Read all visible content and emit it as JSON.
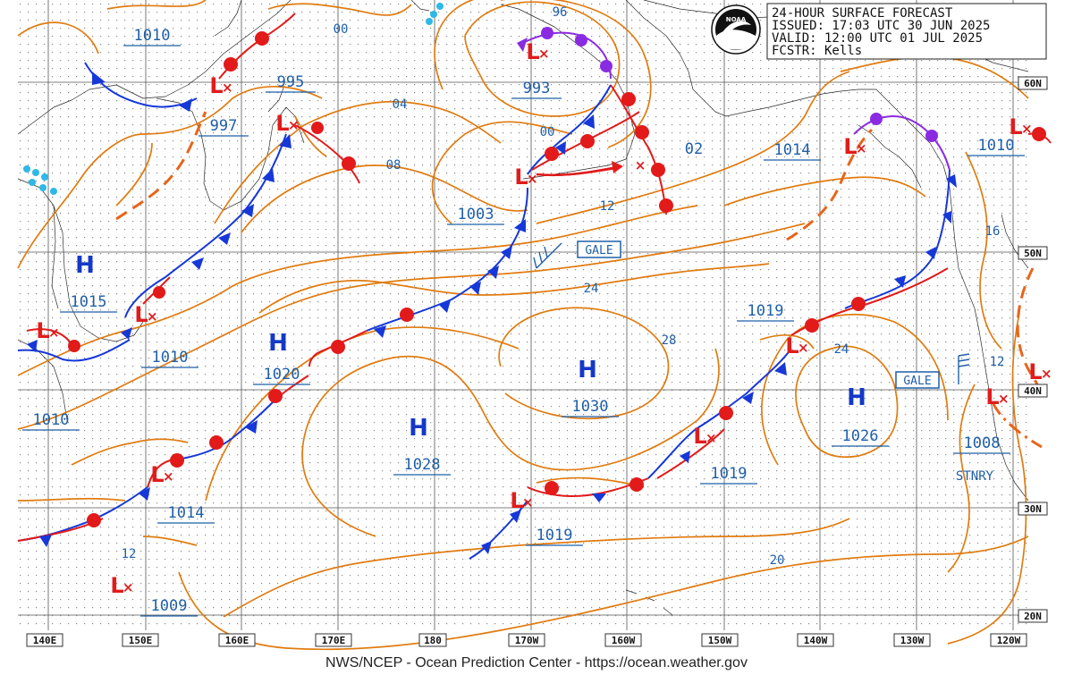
{
  "header": {
    "title": "24-HOUR SURFACE FORECAST",
    "issued": "ISSUED: 17:03 UTC 30 JUN 2025",
    "valid": "VALID:  12:00 UTC 01 JUL 2025",
    "forecaster": "FCSTR:  Kells"
  },
  "logo_text": "NOAA",
  "footer": "NWS/NCEP - Ocean Prediction Center - https://ocean.weather.gov",
  "lon_labels": [
    "140E",
    "150E",
    "160E",
    "170E",
    "180",
    "170W",
    "160W",
    "150W",
    "140W",
    "130W",
    "120W"
  ],
  "lat_labels": [
    "60N",
    "50N",
    "40N",
    "30N",
    "20N"
  ],
  "highs": [
    {
      "symbol": "H",
      "pressure": "1015"
    },
    {
      "symbol": "H",
      "pressure": "1020"
    },
    {
      "symbol": "H",
      "pressure": "1028"
    },
    {
      "symbol": "H",
      "pressure": "1030"
    },
    {
      "symbol": "H",
      "pressure": "1026"
    }
  ],
  "lows": [
    {
      "symbol": "L",
      "pressure": "997"
    },
    {
      "symbol": "L",
      "pressure": "995"
    },
    {
      "symbol": "L",
      "pressure": "993"
    },
    {
      "symbol": "L",
      "pressure": "1003"
    },
    {
      "symbol": "L",
      "pressure": "1014"
    },
    {
      "symbol": "L",
      "pressure": "1010"
    },
    {
      "symbol": "L",
      "pressure": "1010"
    },
    {
      "symbol": "L",
      "pressure": "1019"
    },
    {
      "symbol": "L",
      "pressure": "1019"
    },
    {
      "symbol": "L",
      "pressure": "1019"
    },
    {
      "symbol": "L",
      "pressure": "1014"
    },
    {
      "symbol": "L",
      "pressure": "1009"
    },
    {
      "symbol": "L",
      "pressure": "1008"
    },
    {
      "symbol": "L",
      "pressure": "1010"
    }
  ],
  "other_pressures": [
    "1010",
    "1010"
  ],
  "isobar_labels": [
    "00",
    "96",
    "04",
    "08",
    "00",
    "02",
    "12",
    "24",
    "28",
    "24",
    "16",
    "12",
    "12",
    "20"
  ],
  "gale_warnings": [
    "GALE",
    "GALE"
  ],
  "front_labels": [
    "STNRY"
  ],
  "colors": {
    "isobar": "#e07b10",
    "high": "#1438c8",
    "low": "#e01c1c",
    "cold_front": "#1638d8",
    "warm_front": "#e21a1a",
    "occluded_front": "#8a2be2",
    "label": "#1f5fa8"
  }
}
